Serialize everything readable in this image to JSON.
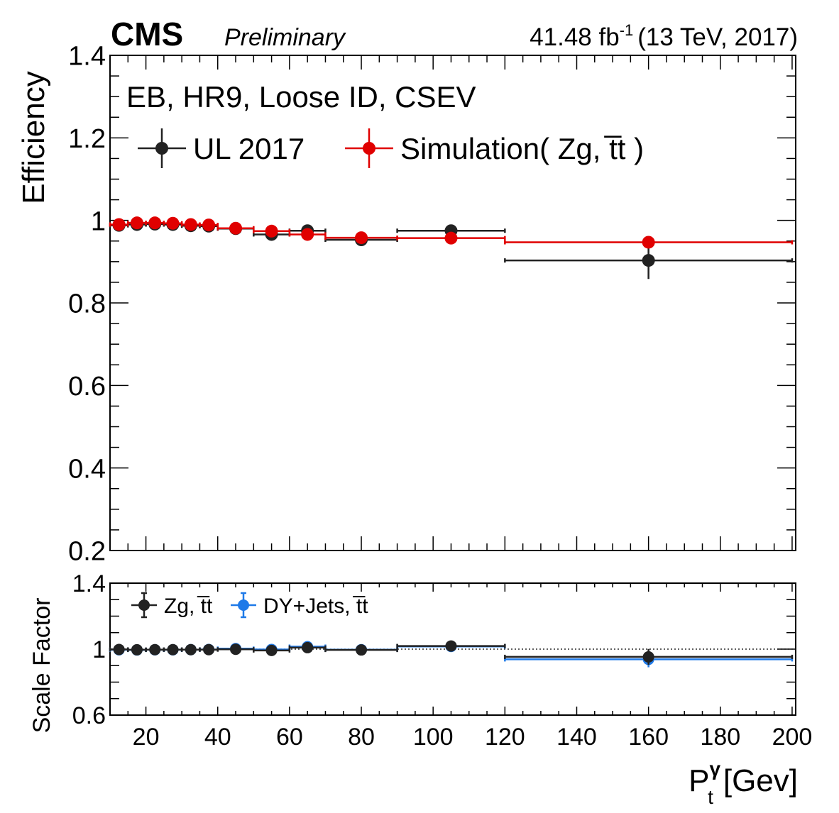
{
  "header": {
    "experiment": "CMS",
    "status": "Preliminary",
    "lumi_value": "41.48 fb",
    "lumi_exp": "-1",
    "lumi_rest": "(13 TeV, 2017)"
  },
  "chart_data": [
    {
      "type": "scatter",
      "panel": "efficiency",
      "ylabel": "Efficiency",
      "annotation": "EB, HR9, Loose ID, CSEV",
      "xlim": [
        10,
        201
      ],
      "ylim": [
        0.2,
        1.4
      ],
      "yticks": [
        "0.2",
        "0.4",
        "0.6",
        "0.8",
        "1",
        "1.2",
        "1.4"
      ],
      "legend_position": "top-left",
      "series": [
        {
          "name": "UL 2017",
          "color": "#222222",
          "points": [
            {
              "x": 12.5,
              "xlo": 10,
              "xhi": 15,
              "y": 0.988,
              "err": 0.004
            },
            {
              "x": 17.5,
              "xlo": 15,
              "xhi": 20,
              "y": 0.99,
              "err": 0.004
            },
            {
              "x": 22.5,
              "xlo": 20,
              "xhi": 25,
              "y": 0.991,
              "err": 0.004
            },
            {
              "x": 27.5,
              "xlo": 25,
              "xhi": 30,
              "y": 0.99,
              "err": 0.004
            },
            {
              "x": 32.5,
              "xlo": 30,
              "xhi": 35,
              "y": 0.987,
              "err": 0.004
            },
            {
              "x": 37.5,
              "xlo": 35,
              "xhi": 40,
              "y": 0.986,
              "err": 0.004
            },
            {
              "x": 45,
              "xlo": 40,
              "xhi": 50,
              "y": 0.98,
              "err": 0.004
            },
            {
              "x": 55,
              "xlo": 50,
              "xhi": 60,
              "y": 0.966,
              "err": 0.006
            },
            {
              "x": 65,
              "xlo": 60,
              "xhi": 70,
              "y": 0.975,
              "err": 0.006
            },
            {
              "x": 80,
              "xlo": 70,
              "xhi": 90,
              "y": 0.953,
              "err": 0.006
            },
            {
              "x": 105,
              "xlo": 90,
              "xhi": 120,
              "y": 0.975,
              "err": 0.008
            },
            {
              "x": 160,
              "xlo": 120,
              "xhi": 200,
              "y": 0.903,
              "err": 0.045
            }
          ]
        },
        {
          "name": "Simulation( Zg, t̅t )",
          "color": "#e00000",
          "points": [
            {
              "x": 12.5,
              "xlo": 10,
              "xhi": 15,
              "y": 0.99,
              "err": 0.002
            },
            {
              "x": 17.5,
              "xlo": 15,
              "xhi": 20,
              "y": 0.994,
              "err": 0.002
            },
            {
              "x": 22.5,
              "xlo": 20,
              "xhi": 25,
              "y": 0.994,
              "err": 0.002
            },
            {
              "x": 27.5,
              "xlo": 25,
              "xhi": 30,
              "y": 0.993,
              "err": 0.002
            },
            {
              "x": 32.5,
              "xlo": 30,
              "xhi": 35,
              "y": 0.99,
              "err": 0.002
            },
            {
              "x": 37.5,
              "xlo": 35,
              "xhi": 40,
              "y": 0.989,
              "err": 0.002
            },
            {
              "x": 45,
              "xlo": 40,
              "xhi": 50,
              "y": 0.981,
              "err": 0.002
            },
            {
              "x": 55,
              "xlo": 50,
              "xhi": 60,
              "y": 0.974,
              "err": 0.002
            },
            {
              "x": 65,
              "xlo": 60,
              "xhi": 70,
              "y": 0.966,
              "err": 0.002
            },
            {
              "x": 80,
              "xlo": 70,
              "xhi": 90,
              "y": 0.958,
              "err": 0.002
            },
            {
              "x": 105,
              "xlo": 90,
              "xhi": 120,
              "y": 0.957,
              "err": 0.002
            },
            {
              "x": 160,
              "xlo": 120,
              "xhi": 200,
              "y": 0.947,
              "err": 0.003
            }
          ]
        }
      ]
    },
    {
      "type": "scatter",
      "panel": "scale-factor",
      "ylabel": "Scale Factor",
      "xlabel_main": "P",
      "xlabel_sub": "t",
      "xlabel_sup": "γ",
      "xlabel_unit": "[Gev]",
      "xlim": [
        10,
        201
      ],
      "ylim": [
        0.6,
        1.4
      ],
      "yticks": [
        "0.6",
        "1",
        "1.4"
      ],
      "xticks": [
        "20",
        "40",
        "60",
        "80",
        "100",
        "120",
        "140",
        "160",
        "180",
        "200"
      ],
      "reference_line": 1.0,
      "legend_position": "top-left",
      "series": [
        {
          "name": "Zg, t̅t",
          "color": "#222222",
          "points": [
            {
              "x": 12.5,
              "xlo": 10,
              "xhi": 15,
              "y": 0.998,
              "err": 0.005
            },
            {
              "x": 17.5,
              "xlo": 15,
              "xhi": 20,
              "y": 0.996,
              "err": 0.005
            },
            {
              "x": 22.5,
              "xlo": 20,
              "xhi": 25,
              "y": 0.997,
              "err": 0.005
            },
            {
              "x": 27.5,
              "xlo": 25,
              "xhi": 30,
              "y": 0.997,
              "err": 0.005
            },
            {
              "x": 32.5,
              "xlo": 30,
              "xhi": 35,
              "y": 0.997,
              "err": 0.005
            },
            {
              "x": 37.5,
              "xlo": 35,
              "xhi": 40,
              "y": 0.997,
              "err": 0.005
            },
            {
              "x": 45,
              "xlo": 40,
              "xhi": 50,
              "y": 0.999,
              "err": 0.005
            },
            {
              "x": 55,
              "xlo": 50,
              "xhi": 60,
              "y": 0.992,
              "err": 0.006
            },
            {
              "x": 65,
              "xlo": 60,
              "xhi": 70,
              "y": 1.009,
              "err": 0.007
            },
            {
              "x": 80,
              "xlo": 70,
              "xhi": 90,
              "y": 0.995,
              "err": 0.007
            },
            {
              "x": 105,
              "xlo": 90,
              "xhi": 120,
              "y": 1.019,
              "err": 0.009
            },
            {
              "x": 160,
              "xlo": 120,
              "xhi": 200,
              "y": 0.953,
              "err": 0.048
            }
          ]
        },
        {
          "name": "DY+Jets, t̅t",
          "color": "#1f7ae8",
          "points": [
            {
              "x": 12.5,
              "xlo": 10,
              "xhi": 15,
              "y": 0.996,
              "err": 0.005
            },
            {
              "x": 17.5,
              "xlo": 15,
              "xhi": 20,
              "y": 0.995,
              "err": 0.005
            },
            {
              "x": 22.5,
              "xlo": 20,
              "xhi": 25,
              "y": 0.996,
              "err": 0.005
            },
            {
              "x": 27.5,
              "xlo": 25,
              "xhi": 30,
              "y": 0.996,
              "err": 0.005
            },
            {
              "x": 32.5,
              "xlo": 30,
              "xhi": 35,
              "y": 0.997,
              "err": 0.005
            },
            {
              "x": 37.5,
              "xlo": 35,
              "xhi": 40,
              "y": 0.998,
              "err": 0.005
            },
            {
              "x": 45,
              "xlo": 40,
              "xhi": 50,
              "y": 1.003,
              "err": 0.005
            },
            {
              "x": 55,
              "xlo": 50,
              "xhi": 60,
              "y": 0.998,
              "err": 0.006
            },
            {
              "x": 65,
              "xlo": 60,
              "xhi": 70,
              "y": 1.015,
              "err": 0.007
            },
            {
              "x": 80,
              "xlo": 70,
              "xhi": 90,
              "y": 0.997,
              "err": 0.007
            },
            {
              "x": 105,
              "xlo": 90,
              "xhi": 120,
              "y": 1.016,
              "err": 0.009
            },
            {
              "x": 160,
              "xlo": 120,
              "xhi": 200,
              "y": 0.938,
              "err": 0.048
            }
          ]
        }
      ]
    }
  ]
}
